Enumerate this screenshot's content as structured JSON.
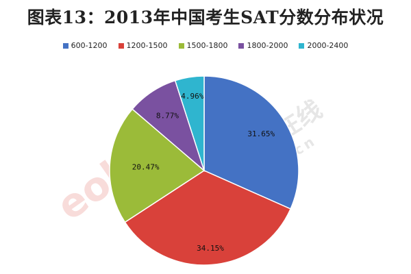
{
  "chart_data": {
    "type": "pie",
    "title": "图表13：2013年中国考生SAT分数分布状况",
    "categories": [
      "600-1200",
      "1200-1500",
      "1500-1800",
      "1800-2000",
      "2000-2400"
    ],
    "values": [
      31.65,
      34.15,
      20.47,
      8.77,
      4.96
    ],
    "value_labels": [
      "31.65%",
      "34.15%",
      "20.47%",
      "8.77%",
      "4.96%"
    ],
    "colors": [
      "#4472C4",
      "#D9413A",
      "#9BBB39",
      "#7A51A0",
      "#2FB5CF"
    ],
    "legend_position": "top",
    "start_angle": "12 o'clock",
    "direction": "clockwise"
  },
  "watermark": {
    "brand": "eol",
    "chinese": "中国教育在线",
    "url": "www.eol.cn"
  }
}
